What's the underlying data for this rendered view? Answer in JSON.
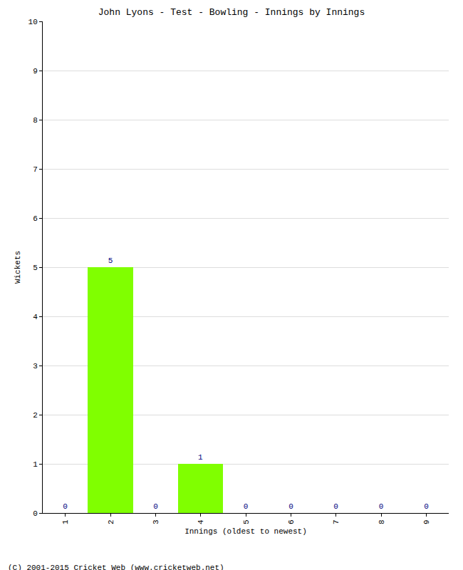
{
  "chart_data": {
    "type": "bar",
    "title": "John Lyons - Test - Bowling - Innings by Innings",
    "x_label": "Innings (oldest to newest)",
    "y_label": "Wickets",
    "categories": [
      "1",
      "2",
      "3",
      "4",
      "5",
      "6",
      "7",
      "8",
      "9"
    ],
    "values": [
      0,
      5,
      0,
      1,
      0,
      0,
      0,
      0,
      0
    ],
    "color": "#80ff00",
    "ylim": [
      0,
      10
    ],
    "yticks": [
      0,
      1,
      2,
      3,
      4,
      5,
      6,
      7,
      8,
      9,
      10
    ],
    "grid": true,
    "data_labels": true,
    "annotations": [
      "(C) 2001-2015 Cricket Web (www.cricketweb.net)"
    ]
  }
}
